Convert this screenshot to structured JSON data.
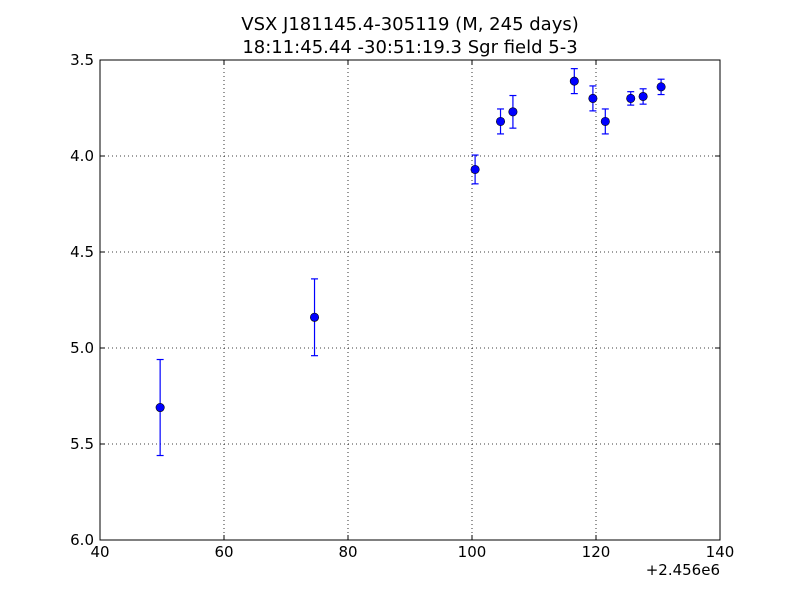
{
  "chart_data": {
    "type": "scatter",
    "title_line1": "VSX J181145.4-305119  (M, 245 days)",
    "title_line2": "18:11:45.44 -30:51:19.3 Sgr field 5-3",
    "xlim": [
      40,
      140
    ],
    "ylim": [
      6.0,
      3.5
    ],
    "y_inverted": true,
    "x_offset_label": "+2.456e6",
    "xticks": [
      40,
      60,
      80,
      100,
      120,
      140
    ],
    "xtick_labels": [
      "40",
      "60",
      "80",
      "100",
      "120",
      "140"
    ],
    "yticks": [
      3.5,
      4.0,
      4.5,
      5.0,
      5.5,
      6.0
    ],
    "ytick_labels": [
      "3.5",
      "4.0",
      "4.5",
      "5.0",
      "5.5",
      "6.0"
    ],
    "grid": true,
    "marker_color": "#0000ff",
    "points": [
      {
        "x": 49.7,
        "y": 5.31,
        "err": 0.25
      },
      {
        "x": 74.6,
        "y": 4.84,
        "err": 0.2
      },
      {
        "x": 100.5,
        "y": 4.07,
        "err": 0.075
      },
      {
        "x": 104.6,
        "y": 3.82,
        "err": 0.065
      },
      {
        "x": 106.6,
        "y": 3.77,
        "err": 0.085
      },
      {
        "x": 116.5,
        "y": 3.61,
        "err": 0.065
      },
      {
        "x": 119.5,
        "y": 3.7,
        "err": 0.065
      },
      {
        "x": 121.5,
        "y": 3.82,
        "err": 0.065
      },
      {
        "x": 125.6,
        "y": 3.7,
        "err": 0.035
      },
      {
        "x": 127.6,
        "y": 3.69,
        "err": 0.04
      },
      {
        "x": 130.5,
        "y": 3.64,
        "err": 0.04
      }
    ]
  }
}
